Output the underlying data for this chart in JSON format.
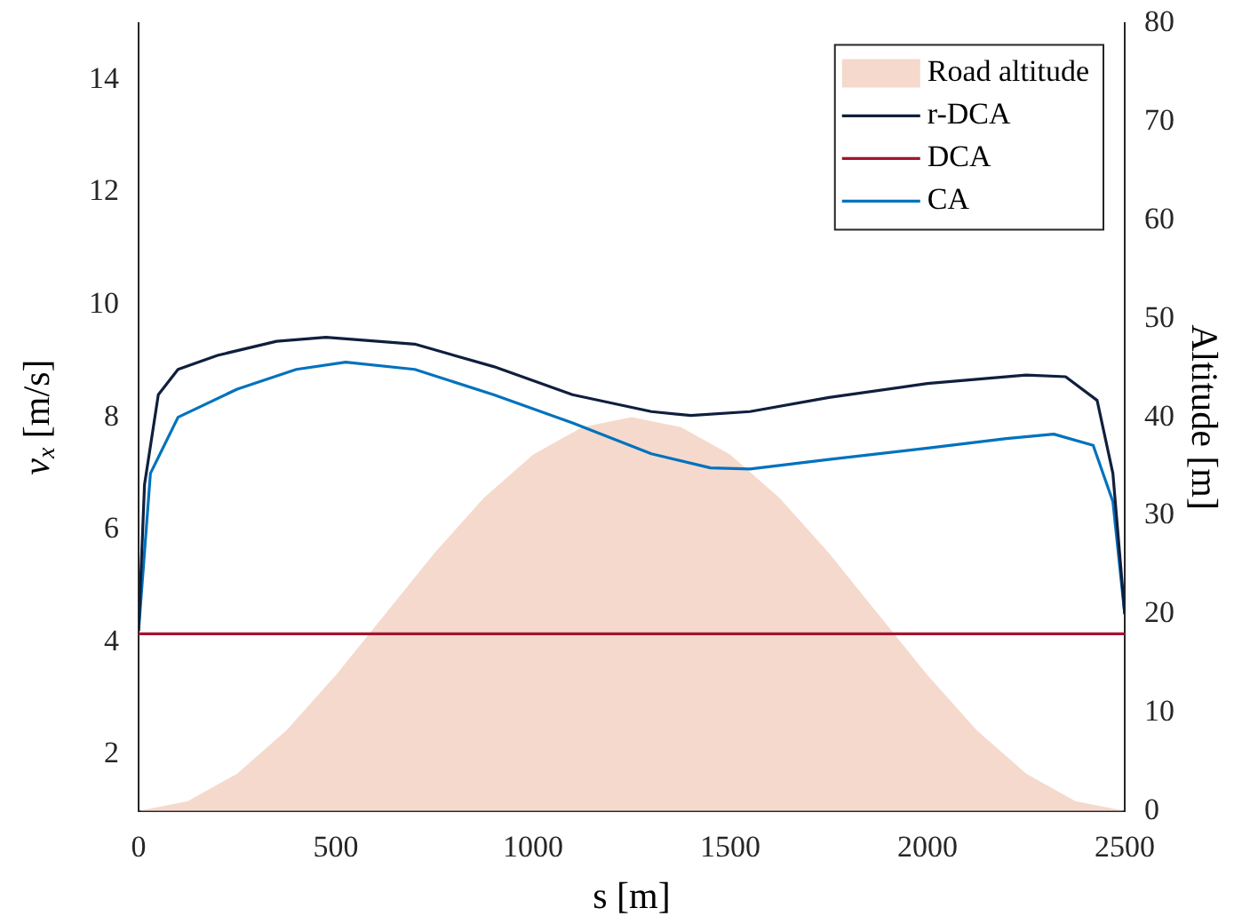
{
  "chart_data": {
    "type": "line",
    "xlabel": "s [m]",
    "ylabel": "v$_{x}$ [m/s]",
    "y2label": "Altitude [m]",
    "xlim": [
      0,
      2500
    ],
    "xticks": [
      0,
      500,
      1000,
      1500,
      2000,
      2500
    ],
    "ylim": [
      1,
      15
    ],
    "yticks": [
      2,
      4,
      6,
      8,
      10,
      12,
      14
    ],
    "y2lim": [
      0,
      80
    ],
    "y2ticks": [
      0,
      10,
      20,
      30,
      40,
      50,
      60,
      70,
      80
    ],
    "grid": false,
    "legend": "top right",
    "marker": "none",
    "line_style": "solid",
    "series": [
      {
        "name": "Road altitude",
        "type": "area",
        "axis": "y2",
        "color": "#f5d9cd",
        "x": [
          0,
          125,
          250,
          375,
          500,
          625,
          750,
          875,
          1000,
          1125,
          1250,
          1375,
          1500,
          1625,
          1750,
          1875,
          2000,
          2125,
          2250,
          2375,
          2500
        ],
        "values": [
          0,
          1,
          3.8,
          8.2,
          13.8,
          20,
          26.2,
          31.8,
          36.2,
          39,
          40,
          39,
          36.2,
          31.8,
          26.2,
          20,
          13.8,
          8.2,
          3.8,
          1,
          0
        ]
      },
      {
        "name": "r-DCA",
        "color": "#0f1f3d",
        "x": [
          0,
          15,
          50,
          100,
          200,
          350,
          475,
          700,
          900,
          1100,
          1300,
          1400,
          1550,
          1750,
          2000,
          2250,
          2350,
          2430,
          2470,
          2500
        ],
        "values": [
          4.2,
          6.8,
          8.4,
          8.85,
          9.1,
          9.35,
          9.42,
          9.3,
          8.9,
          8.4,
          8.1,
          8.03,
          8.1,
          8.35,
          8.6,
          8.75,
          8.72,
          8.3,
          7,
          4.5
        ]
      },
      {
        "name": "DCA",
        "color": "#a2142f",
        "x": [
          0,
          2500
        ],
        "values": [
          4.15,
          4.15
        ]
      },
      {
        "name": "CA",
        "color": "#0072bd",
        "x": [
          0,
          30,
          100,
          250,
          400,
          525,
          700,
          900,
          1100,
          1300,
          1450,
          1550,
          1750,
          2000,
          2200,
          2320,
          2420,
          2470,
          2500
        ],
        "values": [
          4.2,
          7,
          8,
          8.5,
          8.85,
          8.98,
          8.85,
          8.4,
          7.9,
          7.35,
          7.1,
          7.08,
          7.25,
          7.45,
          7.62,
          7.7,
          7.5,
          6.5,
          4.5
        ]
      }
    ]
  }
}
